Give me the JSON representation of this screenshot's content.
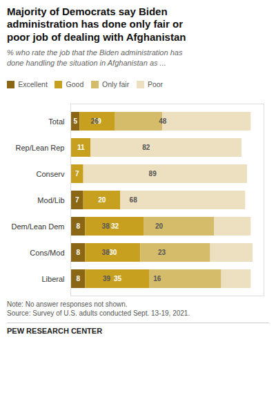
{
  "chart_data": {
    "type": "bar",
    "orientation": "horizontal",
    "stacked": true,
    "title": "Majority of Democrats say Biden\nadministration has done only fair or\npoor job of dealing with Afghanistan",
    "subtitle": "% who rate the job that the Biden administration has\ndone handling the situation in Afghanistan as ...",
    "annotations": [
      "Note: No answer responses not shown.",
      "Source: Survey of U.S. adults conducted Sept. 13-19, 2021.",
      "PEW RESEARCH CENTER"
    ],
    "categories": [
      "Total",
      "Rep/Lean Rep",
      "Conserv",
      "Mod/Lib",
      "Dem/Lean Dem",
      "Cons/Mod",
      "Liberal"
    ],
    "series": [
      {
        "name": "Excellent",
        "color": "#8B6614",
        "values": [
          5,
          0,
          0,
          7,
          8,
          8,
          8
        ]
      },
      {
        "name": "Good",
        "color": "#C8A020",
        "values": [
          19,
          11,
          7,
          20,
          32,
          30,
          35
        ]
      },
      {
        "name": "Only fair",
        "color": "#D4BC6A",
        "values": [
          26,
          0,
          0,
          0,
          38,
          38,
          39
        ]
      },
      {
        "name": "Poor",
        "color": "#EDE0C0",
        "values": [
          48,
          82,
          89,
          68,
          20,
          23,
          16
        ]
      }
    ],
    "xlim": [
      0,
      105
    ],
    "data_labels": true,
    "tick_labels": "y",
    "legend": "top left",
    "grid": false
  }
}
